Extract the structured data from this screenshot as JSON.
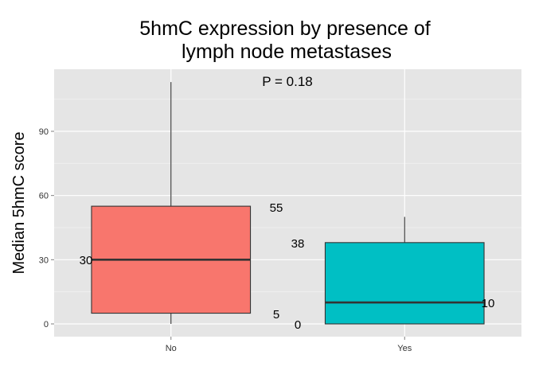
{
  "chart_data": {
    "type": "box",
    "title": [
      "5hmC expression by presence of",
      "lymph node metastases"
    ],
    "xlabel": "",
    "ylabel": "Median 5hmC score",
    "categories": [
      "No",
      "Yes"
    ],
    "y_ticks": [
      0,
      30,
      60,
      90
    ],
    "ylim": [
      -6,
      120
    ],
    "grid": true,
    "legend": "none",
    "series": [
      {
        "category": "No",
        "min": 0,
        "q1": 5,
        "median": 30,
        "q3": 55,
        "max": 113,
        "color": "#F8766D"
      },
      {
        "category": "Yes",
        "min": 0,
        "q1": 0,
        "median": 10,
        "q3": 38,
        "max": 50,
        "color": "#00BFC4"
      }
    ],
    "annotations": {
      "p_value": "P = 0.18",
      "No": {
        "q3": "55",
        "median": "30",
        "q1": "5"
      },
      "Yes": {
        "q3": "38",
        "median": "10",
        "q1": "0"
      }
    }
  }
}
